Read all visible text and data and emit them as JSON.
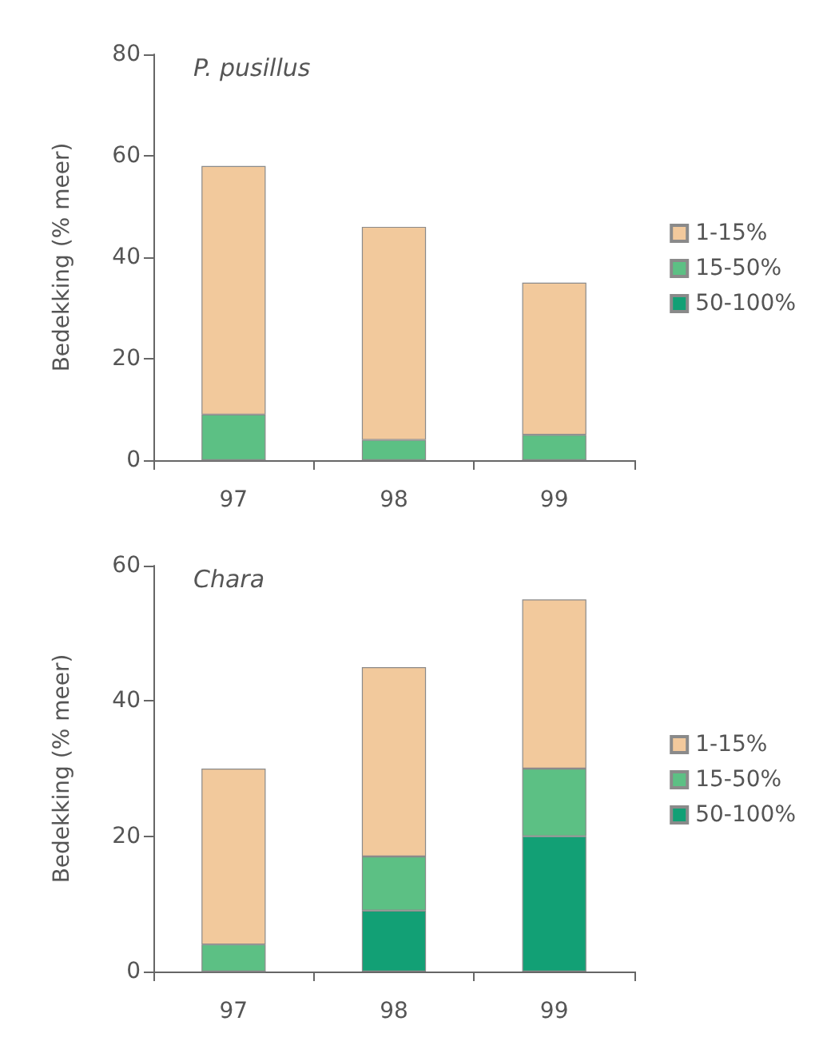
{
  "chart_data": [
    {
      "type": "bar",
      "title": "P. pusillus",
      "ylabel": "Bedekking (% meer)",
      "categories": [
        "97",
        "98",
        "99"
      ],
      "stacked": true,
      "ylim": [
        0,
        80
      ],
      "yticks": [
        0,
        20,
        40,
        60,
        80
      ],
      "grid": false,
      "legend": "right",
      "series": [
        {
          "name": "50-100%",
          "color": "#12a075",
          "values": [
            0,
            0,
            0
          ]
        },
        {
          "name": "15-50%",
          "color": "#5cc084",
          "values": [
            9,
            4,
            5
          ]
        },
        {
          "name": "1-15%",
          "color": "#f2c99c",
          "values": [
            49,
            42,
            30
          ]
        }
      ]
    },
    {
      "type": "bar",
      "title": "Chara",
      "ylabel": "Bedekking (% meer)",
      "categories": [
        "97",
        "98",
        "99"
      ],
      "stacked": true,
      "ylim": [
        0,
        60
      ],
      "yticks": [
        0,
        20,
        40,
        60
      ],
      "grid": false,
      "legend": "right",
      "series": [
        {
          "name": "50-100%",
          "color": "#12a075",
          "values": [
            0,
            9,
            20
          ]
        },
        {
          "name": "15-50%",
          "color": "#5cc084",
          "values": [
            4,
            8,
            10
          ]
        },
        {
          "name": "1-15%",
          "color": "#f2c99c",
          "values": [
            26,
            28,
            25
          ]
        }
      ]
    }
  ]
}
